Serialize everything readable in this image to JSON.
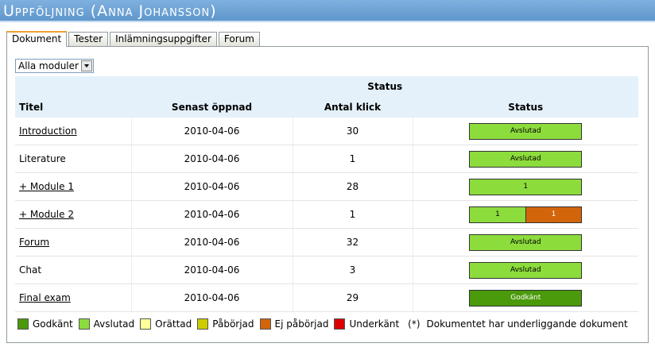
{
  "header": {
    "title": "Uppföljning (Anna Johansson)"
  },
  "tabs": [
    {
      "label": "Dokument",
      "active": true
    },
    {
      "label": "Tester"
    },
    {
      "label": "Inlämningsuppgifter"
    },
    {
      "label": "Forum"
    }
  ],
  "filter": {
    "label": "Alla moduler"
  },
  "table": {
    "group_header": "Status",
    "columns": [
      "Titel",
      "Senast öppnad",
      "Antal klick",
      "Status"
    ],
    "rows": [
      {
        "title": "Introduction",
        "link": true,
        "date": "2010-04-06",
        "clicks": 30,
        "status": [
          {
            "label": "Avslutad",
            "color": "#8cdc3c",
            "text_color": "#000000"
          }
        ]
      },
      {
        "title": "Literature",
        "link": false,
        "date": "2010-04-06",
        "clicks": 1,
        "status": [
          {
            "label": "Avslutad",
            "color": "#8cdc3c",
            "text_color": "#000000"
          }
        ]
      },
      {
        "title": "+ Module 1",
        "link": true,
        "date": "2010-04-06",
        "clicks": 28,
        "status": [
          {
            "label": "1",
            "color": "#8cdc3c",
            "text_color": "#000000"
          }
        ]
      },
      {
        "title": "+ Module 2",
        "link": true,
        "date": "2010-04-06",
        "clicks": 1,
        "status": [
          {
            "label": "1",
            "color": "#8cdc3c",
            "text_color": "#000000"
          },
          {
            "label": "1",
            "color": "#d2650a",
            "text_color": "#ffffff"
          }
        ]
      },
      {
        "title": "Forum",
        "link": true,
        "date": "2010-04-06",
        "clicks": 32,
        "status": [
          {
            "label": "Avslutad",
            "color": "#8cdc3c",
            "text_color": "#000000"
          }
        ]
      },
      {
        "title": "Chat",
        "link": false,
        "date": "2010-04-06",
        "clicks": 3,
        "status": [
          {
            "label": "Avslutad",
            "color": "#8cdc3c",
            "text_color": "#000000"
          }
        ]
      },
      {
        "title": "Final exam",
        "link": true,
        "date": "2010-04-06",
        "clicks": 29,
        "status": [
          {
            "label": "Godkänt",
            "color": "#4a9a0c",
            "text_color": "#ffffff"
          }
        ]
      }
    ]
  },
  "legend": [
    {
      "label": "Godkänt",
      "color": "#4a9a0c"
    },
    {
      "label": "Avslutad",
      "color": "#8cdc3c"
    },
    {
      "label": "Orättad",
      "color": "#ffff99"
    },
    {
      "label": "Påbörjad",
      "color": "#cccc00"
    },
    {
      "label": "Ej påbörjad",
      "color": "#d2650a"
    },
    {
      "label": "Underkänt",
      "color": "#dd0000"
    }
  ],
  "note": {
    "marker": "(*)",
    "text": "Dokumentet har underliggande dokument"
  }
}
